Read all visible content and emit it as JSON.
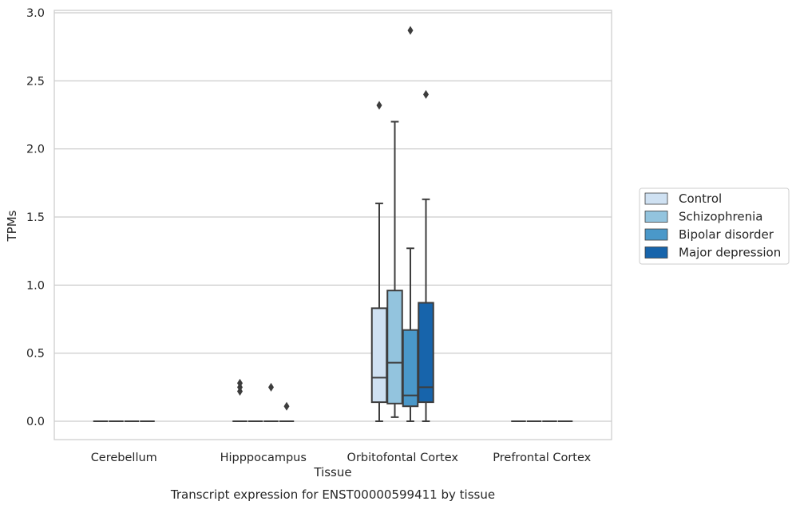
{
  "chart_data": {
    "type": "box",
    "title": "Transcript expression for ENST00000599411 by tissue",
    "xlabel": "Tissue",
    "ylabel": "TPMs",
    "ylim": [
      -0.14,
      3.02
    ],
    "yticks": [
      "0.0",
      "0.5",
      "1.0",
      "1.5",
      "2.0",
      "2.5",
      "3.0"
    ],
    "categories": [
      "Cerebellum",
      "Hipppocampus",
      "Orbitofontal Cortex",
      "Prefrontal Cortex"
    ],
    "grid": true,
    "legend_position": "right",
    "series": [
      {
        "name": "Control",
        "color": "#cfe1f2",
        "boxes": [
          {
            "category": "Cerebellum",
            "min": 0,
            "q1": 0,
            "median": 0,
            "q3": 0,
            "max": 0,
            "outliers": []
          },
          {
            "category": "Hipppocampus",
            "min": 0,
            "q1": 0,
            "median": 0,
            "q3": 0,
            "max": 0,
            "outliers": [
              0.22,
              0.25,
              0.28
            ]
          },
          {
            "category": "Orbitofontal Cortex",
            "min": 0,
            "q1": 0.14,
            "median": 0.32,
            "q3": 0.83,
            "max": 1.6,
            "outliers": [
              2.32
            ]
          },
          {
            "category": "Prefrontal Cortex",
            "min": 0,
            "q1": 0,
            "median": 0,
            "q3": 0,
            "max": 0,
            "outliers": []
          }
        ]
      },
      {
        "name": "Schizophrenia",
        "color": "#93c4de",
        "boxes": [
          {
            "category": "Cerebellum",
            "min": 0,
            "q1": 0,
            "median": 0,
            "q3": 0,
            "max": 0,
            "outliers": []
          },
          {
            "category": "Hipppocampus",
            "min": 0,
            "q1": 0,
            "median": 0,
            "q3": 0,
            "max": 0,
            "outliers": []
          },
          {
            "category": "Orbitofontal Cortex",
            "min": 0.03,
            "q1": 0.13,
            "median": 0.43,
            "q3": 0.96,
            "max": 2.2,
            "outliers": []
          },
          {
            "category": "Prefrontal Cortex",
            "min": 0,
            "q1": 0,
            "median": 0,
            "q3": 0,
            "max": 0,
            "outliers": []
          }
        ]
      },
      {
        "name": "Bipolar disorder",
        "color": "#4a98c9",
        "boxes": [
          {
            "category": "Cerebellum",
            "min": 0,
            "q1": 0,
            "median": 0,
            "q3": 0,
            "max": 0,
            "outliers": []
          },
          {
            "category": "Hipppocampus",
            "min": 0,
            "q1": 0,
            "median": 0,
            "q3": 0,
            "max": 0,
            "outliers": [
              0.25
            ]
          },
          {
            "category": "Orbitofontal Cortex",
            "min": 0,
            "q1": 0.11,
            "median": 0.19,
            "q3": 0.67,
            "max": 1.27,
            "outliers": [
              2.87
            ]
          },
          {
            "category": "Prefrontal Cortex",
            "min": 0,
            "q1": 0,
            "median": 0,
            "q3": 0,
            "max": 0,
            "outliers": []
          }
        ]
      },
      {
        "name": "Major depression",
        "color": "#1764ab",
        "boxes": [
          {
            "category": "Cerebellum",
            "min": 0,
            "q1": 0,
            "median": 0,
            "q3": 0,
            "max": 0,
            "outliers": []
          },
          {
            "category": "Hipppocampus",
            "min": 0,
            "q1": 0,
            "median": 0,
            "q3": 0,
            "max": 0,
            "outliers": [
              0.11
            ]
          },
          {
            "category": "Orbitofontal Cortex",
            "min": 0,
            "q1": 0.14,
            "median": 0.25,
            "q3": 0.87,
            "max": 1.63,
            "outliers": [
              2.4
            ]
          },
          {
            "category": "Prefrontal Cortex",
            "min": 0,
            "q1": 0,
            "median": 0,
            "q3": 0,
            "max": 0,
            "outliers": []
          }
        ]
      }
    ]
  }
}
